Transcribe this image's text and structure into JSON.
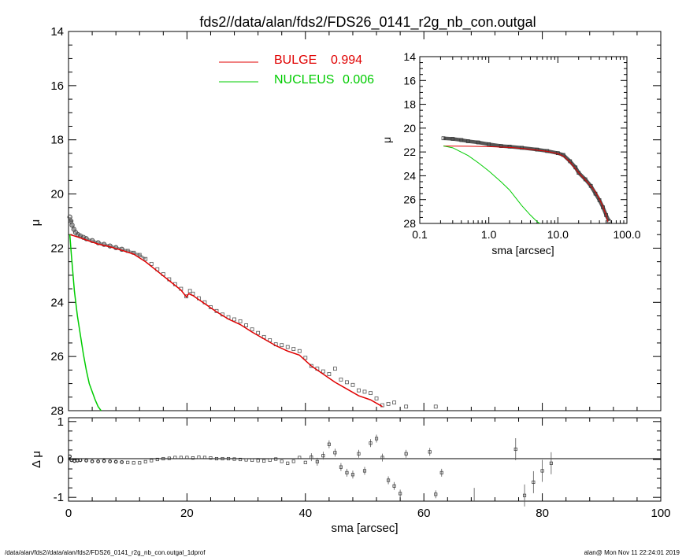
{
  "title": "fds2//data/alan/fds2/FDS26_0141_r2g_nb_con.outgal",
  "footer": {
    "left": "/data/alan/fds2//data/alan/fds2/FDS26_0141_r2g_nb_con.outgal_1dprof",
    "right": "alan@  Mon Nov 11 22:24:01 2019"
  },
  "colors": {
    "data": "#555555",
    "bulge": "#e00000",
    "nucleus": "#00cc00",
    "axis": "#000000"
  },
  "chart_data": [
    {
      "type": "scatter",
      "panel": "main",
      "xlabel": "",
      "ylabel": "μ",
      "xlim": [
        0,
        100
      ],
      "ylim": [
        28,
        14
      ],
      "xticks": [],
      "yticks": [
        "14",
        "16",
        "18",
        "20",
        "22",
        "24",
        "26",
        "28"
      ],
      "legend": [
        {
          "name": "BULGE",
          "value": "0.994"
        },
        {
          "name": "NUCLEUS",
          "value": "0.006"
        }
      ],
      "series": [
        {
          "name": "data",
          "x": [
            0.22,
            0.4,
            0.6,
            0.9,
            1.2,
            1.6,
            2,
            2.5,
            3,
            4,
            5,
            6,
            7,
            8,
            9,
            10,
            11,
            12,
            13,
            14,
            15,
            16,
            17,
            18,
            19,
            19.9,
            20.5,
            21,
            22,
            23,
            24,
            25,
            26,
            27,
            28,
            29,
            30,
            31,
            32,
            33,
            34,
            35,
            36,
            37,
            38,
            39,
            40,
            41,
            42,
            43,
            44,
            45,
            46,
            47,
            48,
            49,
            50,
            51,
            52,
            53,
            54,
            55,
            57,
            62
          ],
          "y": [
            20.85,
            21.0,
            21.15,
            21.3,
            21.42,
            21.5,
            21.55,
            21.6,
            21.65,
            21.72,
            21.8,
            21.86,
            21.92,
            21.98,
            22.04,
            22.1,
            22.17,
            22.25,
            22.4,
            22.58,
            22.78,
            22.96,
            23.15,
            23.33,
            23.5,
            23.78,
            23.58,
            23.68,
            23.85,
            24.0,
            24.18,
            24.32,
            24.45,
            24.55,
            24.63,
            24.7,
            24.85,
            25.0,
            25.13,
            25.28,
            25.4,
            25.55,
            25.58,
            25.65,
            25.72,
            25.8,
            26.05,
            26.35,
            26.45,
            26.55,
            26.65,
            26.45,
            26.85,
            26.95,
            27.05,
            27.25,
            27.3,
            27.35,
            27.55,
            27.8,
            27.75,
            27.7,
            27.85,
            27.85
          ]
        },
        {
          "name": "BULGE",
          "x": [
            0.22,
            1,
            2,
            3,
            5,
            7,
            9,
            11,
            13,
            15,
            17,
            19,
            19.9,
            20.3,
            21,
            23,
            25,
            27,
            29,
            31,
            33,
            35,
            37,
            39,
            41,
            43,
            45,
            47,
            49,
            51,
            53
          ],
          "y": [
            21.5,
            21.55,
            21.62,
            21.7,
            21.85,
            21.95,
            22.08,
            22.22,
            22.5,
            22.85,
            23.2,
            23.55,
            23.8,
            23.68,
            23.75,
            24.05,
            24.35,
            24.62,
            24.82,
            25.1,
            25.35,
            25.6,
            25.8,
            25.95,
            26.35,
            26.65,
            26.95,
            27.2,
            27.45,
            27.6,
            27.85
          ]
        },
        {
          "name": "NUCLEUS",
          "x": [
            0.22,
            0.5,
            1,
            1.5,
            2,
            2.5,
            3,
            3.5,
            4,
            4.5,
            5,
            5.5
          ],
          "y": [
            21.5,
            22.3,
            23.6,
            24.5,
            25.2,
            25.9,
            26.5,
            27.0,
            27.3,
            27.6,
            27.85,
            28.0
          ]
        }
      ]
    },
    {
      "type": "scatter",
      "panel": "inset",
      "xlabel": "sma [arcsec]",
      "ylabel": "μ",
      "xscale": "log",
      "xlim": [
        0.1,
        100
      ],
      "ylim": [
        28,
        14
      ],
      "xticks": [
        "0.1",
        "1.0",
        "10.0",
        "100.0"
      ],
      "yticks": [
        "14",
        "16",
        "18",
        "20",
        "22",
        "24",
        "26",
        "28"
      ],
      "series": [
        {
          "name": "data",
          "x": [
            0.22,
            0.3,
            0.4,
            0.5,
            0.7,
            1,
            1.5,
            2,
            3,
            5,
            7,
            10,
            12,
            15,
            18,
            20,
            25,
            30,
            35,
            40,
            45,
            50,
            55
          ],
          "y": [
            20.85,
            20.9,
            21.0,
            21.1,
            21.2,
            21.35,
            21.5,
            21.55,
            21.65,
            21.8,
            21.92,
            22.1,
            22.25,
            22.78,
            23.3,
            23.75,
            24.3,
            24.85,
            25.5,
            26.05,
            26.65,
            27.3,
            27.8
          ]
        },
        {
          "name": "BULGE",
          "x": [
            0.22,
            0.5,
            1,
            2,
            3,
            5,
            7,
            10,
            12,
            15,
            20,
            25,
            30,
            35,
            40,
            45,
            50,
            53
          ],
          "y": [
            21.5,
            21.52,
            21.55,
            21.62,
            21.7,
            21.85,
            21.95,
            22.15,
            22.35,
            22.85,
            23.75,
            24.35,
            24.85,
            25.35,
            25.95,
            26.6,
            27.3,
            27.85
          ]
        },
        {
          "name": "NUCLEUS",
          "x": [
            0.22,
            0.3,
            0.5,
            0.7,
            1,
            1.5,
            2,
            3,
            4,
            5,
            5.5
          ],
          "y": [
            21.5,
            21.65,
            22.3,
            22.9,
            23.6,
            24.5,
            25.2,
            26.5,
            27.3,
            27.85,
            28.0
          ]
        }
      ]
    },
    {
      "type": "scatter",
      "panel": "residual",
      "xlabel": "sma [arcsec]",
      "ylabel": "Δ μ",
      "xlim": [
        0,
        100
      ],
      "ylim": [
        -1.1,
        1.1
      ],
      "xticks": [
        "0",
        "20",
        "40",
        "60",
        "80",
        "100"
      ],
      "yticks": [
        "1",
        "0",
        "-1"
      ],
      "series": [
        {
          "name": "residual",
          "x": [
            0.22,
            0.5,
            1,
            1.5,
            2,
            3,
            4,
            5,
            6,
            7,
            8,
            9,
            10,
            11,
            12,
            13,
            14,
            15,
            16,
            17,
            18,
            19,
            20,
            21,
            22,
            23,
            24,
            25,
            26,
            27,
            28,
            29,
            30,
            31,
            32,
            33,
            34,
            35,
            36,
            37,
            38,
            39,
            40,
            41,
            42,
            43,
            44,
            45,
            46,
            47,
            48,
            49,
            50,
            51,
            52,
            53,
            54,
            55,
            56,
            57,
            61,
            62,
            63,
            75.5,
            77,
            78.5,
            80,
            81.5
          ],
          "y": [
            0.08,
            -0.02,
            -0.04,
            -0.03,
            -0.02,
            -0.03,
            -0.05,
            -0.05,
            -0.04,
            -0.05,
            -0.06,
            -0.07,
            -0.08,
            -0.09,
            -0.09,
            -0.06,
            -0.03,
            0,
            0.02,
            0.03,
            0.05,
            0.05,
            0.05,
            0.04,
            0.06,
            0.05,
            0.04,
            0.02,
            0.02,
            0.02,
            0.01,
            0.0,
            -0.01,
            -0.02,
            -0.03,
            -0.04,
            -0.02,
            0.01,
            -0.05,
            -0.1,
            -0.05,
            0.05,
            -0.08,
            0.06,
            -0.06,
            0.1,
            0.4,
            0.18,
            -0.2,
            -0.35,
            -0.4,
            0.15,
            -0.3,
            0.43,
            0.55,
            0.05,
            -0.55,
            -0.7,
            -0.9,
            0.15,
            0.2,
            -0.92,
            -0.35,
            0.27,
            -0.95,
            -0.6,
            -0.3,
            -0.1
          ]
        }
      ]
    }
  ]
}
